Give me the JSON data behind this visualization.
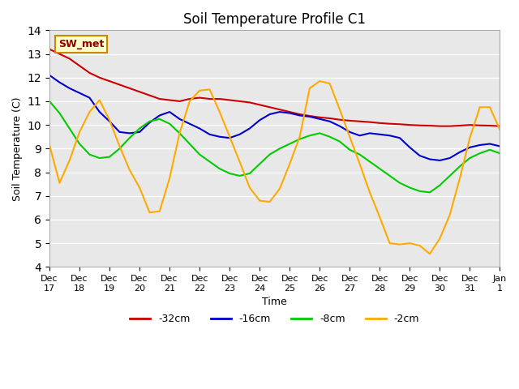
{
  "title": "Soil Temperature Profile C1",
  "xlabel": "Time",
  "ylabel": "Soil Temperature (C)",
  "ylim": [
    4.0,
    14.0
  ],
  "yticks": [
    4.0,
    5.0,
    6.0,
    7.0,
    8.0,
    9.0,
    10.0,
    11.0,
    12.0,
    13.0,
    14.0
  ],
  "colors": {
    "-32cm": "#cc0000",
    "-16cm": "#0000cc",
    "-8cm": "#00cc00",
    "-2cm": "#ffaa00"
  },
  "legend_label": "SW_met",
  "x_tick_labels": [
    "Dec 17",
    "Dec 18",
    "Dec 19",
    "Dec 20",
    "Dec 21",
    "Dec 22",
    "Dec 23",
    "Dec 24",
    "Dec 25",
    "Dec 26",
    "Dec 27",
    "Dec 28",
    "Dec 29",
    "Dec 30",
    "Dec 31",
    "Jan 1"
  ],
  "background_color": "#e8e8e8",
  "series": {
    "-32cm": [
      13.2,
      13.0,
      12.8,
      12.5,
      12.2,
      12.0,
      11.85,
      11.7,
      11.55,
      11.4,
      11.25,
      11.1,
      11.05,
      11.0,
      11.1,
      11.15,
      11.1,
      11.1,
      11.05,
      11.0,
      10.95,
      10.85,
      10.75,
      10.65,
      10.55,
      10.45,
      10.38,
      10.32,
      10.28,
      10.22,
      10.18,
      10.15,
      10.12,
      10.08,
      10.05,
      10.03,
      10.0,
      9.98,
      9.97,
      9.95,
      9.95,
      9.97,
      10.0,
      9.98,
      9.97,
      9.95
    ],
    "-16cm": [
      12.1,
      11.8,
      11.55,
      11.35,
      11.15,
      10.55,
      10.15,
      9.7,
      9.65,
      9.7,
      10.1,
      10.4,
      10.55,
      10.25,
      10.05,
      9.85,
      9.6,
      9.5,
      9.45,
      9.6,
      9.85,
      10.2,
      10.45,
      10.55,
      10.5,
      10.4,
      10.35,
      10.25,
      10.15,
      9.95,
      9.7,
      9.55,
      9.65,
      9.6,
      9.55,
      9.45,
      9.05,
      8.7,
      8.55,
      8.5,
      8.6,
      8.85,
      9.05,
      9.15,
      9.2,
      9.1
    ],
    "-8cm": [
      11.0,
      10.5,
      9.85,
      9.2,
      8.75,
      8.6,
      8.65,
      9.0,
      9.45,
      9.85,
      10.15,
      10.25,
      10.05,
      9.65,
      9.2,
      8.75,
      8.45,
      8.15,
      7.95,
      7.85,
      7.95,
      8.35,
      8.75,
      9.0,
      9.2,
      9.4,
      9.55,
      9.65,
      9.5,
      9.3,
      8.95,
      8.75,
      8.45,
      8.15,
      7.85,
      7.55,
      7.35,
      7.2,
      7.15,
      7.45,
      7.85,
      8.25,
      8.6,
      8.8,
      8.95,
      8.8
    ],
    "-2cm": [
      9.15,
      7.55,
      8.5,
      9.7,
      10.55,
      11.05,
      10.2,
      9.1,
      8.1,
      7.35,
      6.3,
      6.35,
      7.75,
      9.65,
      11.0,
      11.45,
      11.5,
      10.55,
      9.5,
      8.45,
      7.35,
      6.8,
      6.75,
      7.3,
      8.35,
      9.5,
      11.55,
      11.85,
      11.75,
      10.65,
      9.5,
      8.35,
      7.15,
      6.1,
      5.0,
      4.95,
      5.0,
      4.9,
      4.55,
      5.2,
      6.2,
      7.75,
      9.45,
      10.75,
      10.75,
      9.8
    ]
  }
}
